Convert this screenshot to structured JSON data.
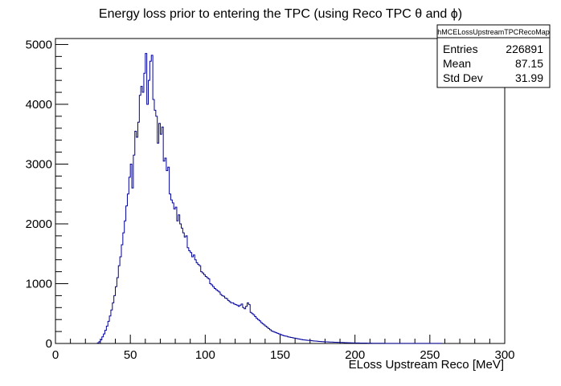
{
  "chart_data": {
    "type": "histogram",
    "title": "Energy loss prior to entering the TPC (using Reco TPC θ and ϕ)",
    "xlabel": "ELoss Upstream Reco [MeV]",
    "ylabel": "",
    "xlim": [
      0,
      300
    ],
    "ylim": [
      0,
      5100
    ],
    "x_ticks": [
      "0",
      "50",
      "100",
      "150",
      "200",
      "250",
      "300"
    ],
    "y_ticks": [
      "0",
      "1000",
      "2000",
      "3000",
      "4000",
      "5000"
    ],
    "bin_width": 1,
    "bins_start": 28,
    "line_color": "#000099",
    "grid": false,
    "stats_box": {
      "name": "hMCELossUpstreamTPCRecoMap",
      "rows": [
        {
          "label": "Entries",
          "value": "226891"
        },
        {
          "label": "Mean",
          "value": "87.15"
        },
        {
          "label": "Std Dev",
          "value": "31.99"
        }
      ]
    },
    "values": [
      10,
      30,
      60,
      110,
      160,
      220,
      290,
      370,
      460,
      560,
      680,
      800,
      950,
      1100,
      1300,
      1450,
      1650,
      1850,
      2050,
      2300,
      2500,
      2780,
      3000,
      2600,
      3150,
      3550,
      3450,
      3700,
      4150,
      4300,
      4200,
      4520,
      4850,
      4000,
      4400,
      4720,
      4820,
      4080,
      3900,
      3800,
      3350,
      3680,
      3500,
      3620,
      3050,
      3100,
      2890,
      2950,
      2500,
      2400,
      2350,
      2250,
      2280,
      2050,
      2150,
      2000,
      1930,
      1850,
      1780,
      1800,
      1600,
      1550,
      1520,
      1450,
      1480,
      1400,
      1350,
      1320,
      1300,
      1200,
      1180,
      1150,
      1120,
      1100,
      1080,
      1000,
      980,
      950,
      920,
      900,
      880,
      860,
      820,
      800,
      790,
      760,
      750,
      720,
      700,
      680,
      680,
      660,
      650,
      640,
      620,
      640,
      660,
      600,
      580,
      620,
      680,
      650,
      520,
      500,
      480,
      450,
      420,
      400,
      380,
      350,
      330,
      310,
      290,
      270,
      250,
      230,
      210,
      200,
      190,
      180,
      170,
      160,
      150,
      140,
      130,
      125,
      120,
      110,
      105,
      100,
      95,
      90,
      85,
      80,
      75,
      70,
      65,
      60,
      58,
      55,
      52,
      50,
      48,
      45,
      42,
      40,
      38,
      36,
      34,
      32,
      30,
      28,
      27,
      26,
      25,
      24,
      23,
      22,
      21,
      20,
      19,
      18,
      17,
      16,
      15,
      14,
      13,
      12,
      11,
      10,
      10,
      9,
      9,
      8,
      8,
      7,
      7,
      6,
      6,
      6,
      5,
      5,
      5,
      4,
      4,
      4,
      4,
      3,
      3,
      3,
      3,
      3,
      2,
      2,
      2,
      2,
      2,
      2,
      2,
      2,
      2,
      2,
      2,
      1,
      1,
      1,
      1,
      1,
      1,
      1,
      1,
      1,
      1,
      1,
      1,
      1,
      1,
      1,
      1,
      1,
      1,
      1,
      1,
      1,
      1,
      1,
      1,
      1,
      1,
      1
    ]
  }
}
